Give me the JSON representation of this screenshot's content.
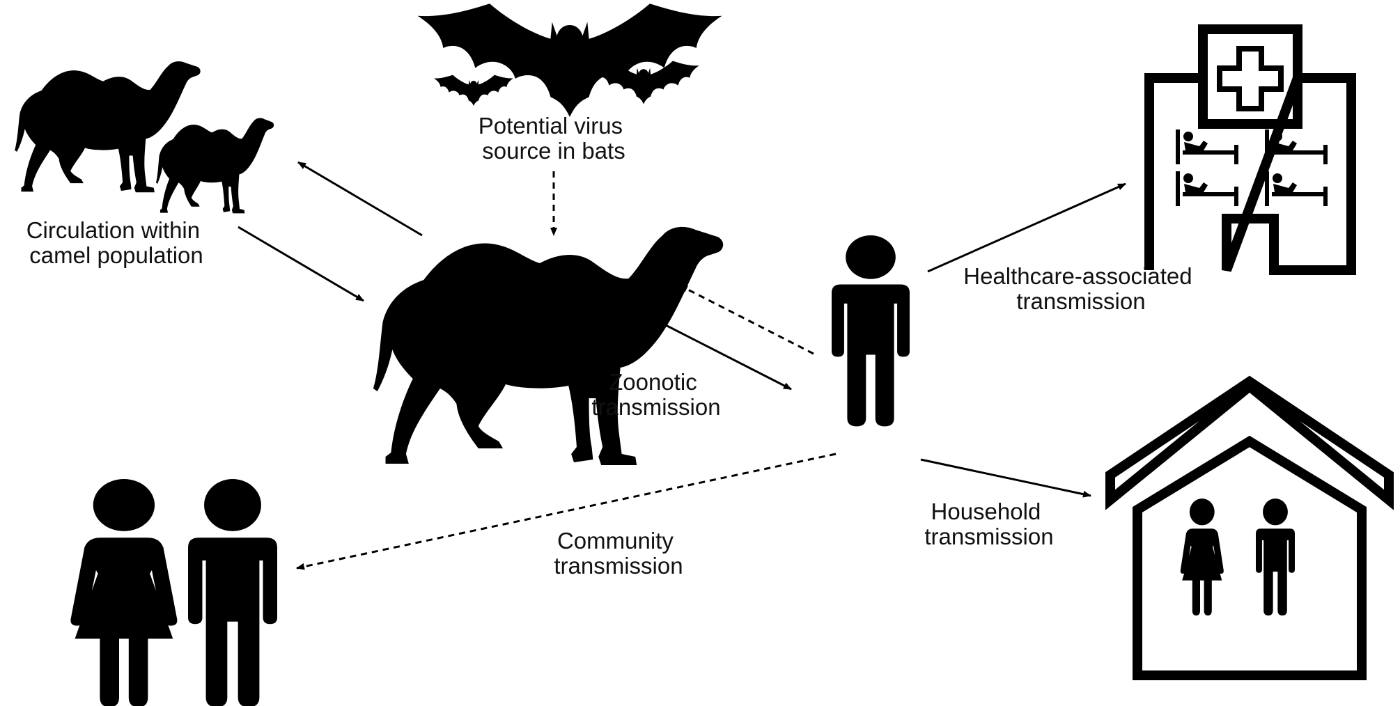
{
  "colors": {
    "ink": "#000000",
    "background": "#ffffff"
  },
  "icons": [
    "bat-icon",
    "camel-icon",
    "person-icon",
    "woman-icon",
    "hospital-icon",
    "house-icon",
    "hospital-bed-icon"
  ],
  "labels": {
    "bats": [
      "Potential virus",
      "source in bats"
    ],
    "camel_circulation": [
      "Circulation within",
      "camel population"
    ],
    "zoonotic": [
      "Zoonotic",
      "transmission"
    ],
    "healthcare": [
      "Healthcare-associated",
      "transmission"
    ],
    "household": [
      "Household",
      "transmission"
    ],
    "community": [
      "Community",
      "transmission"
    ]
  },
  "edges": [
    {
      "from": "bats",
      "to": "camel",
      "style": "dashed"
    },
    {
      "from": "camel",
      "to": "camel-herd",
      "style": "solid"
    },
    {
      "from": "camel-herd",
      "to": "camel",
      "style": "solid"
    },
    {
      "from": "camel",
      "to": "human",
      "style": "solid",
      "label": "zoonotic"
    },
    {
      "from": "human",
      "to": "camel",
      "style": "dashed"
    },
    {
      "from": "human",
      "to": "hospital",
      "style": "solid",
      "label": "healthcare"
    },
    {
      "from": "human",
      "to": "household",
      "style": "solid",
      "label": "household"
    },
    {
      "from": "human",
      "to": "community",
      "style": "dashed",
      "label": "community"
    }
  ]
}
